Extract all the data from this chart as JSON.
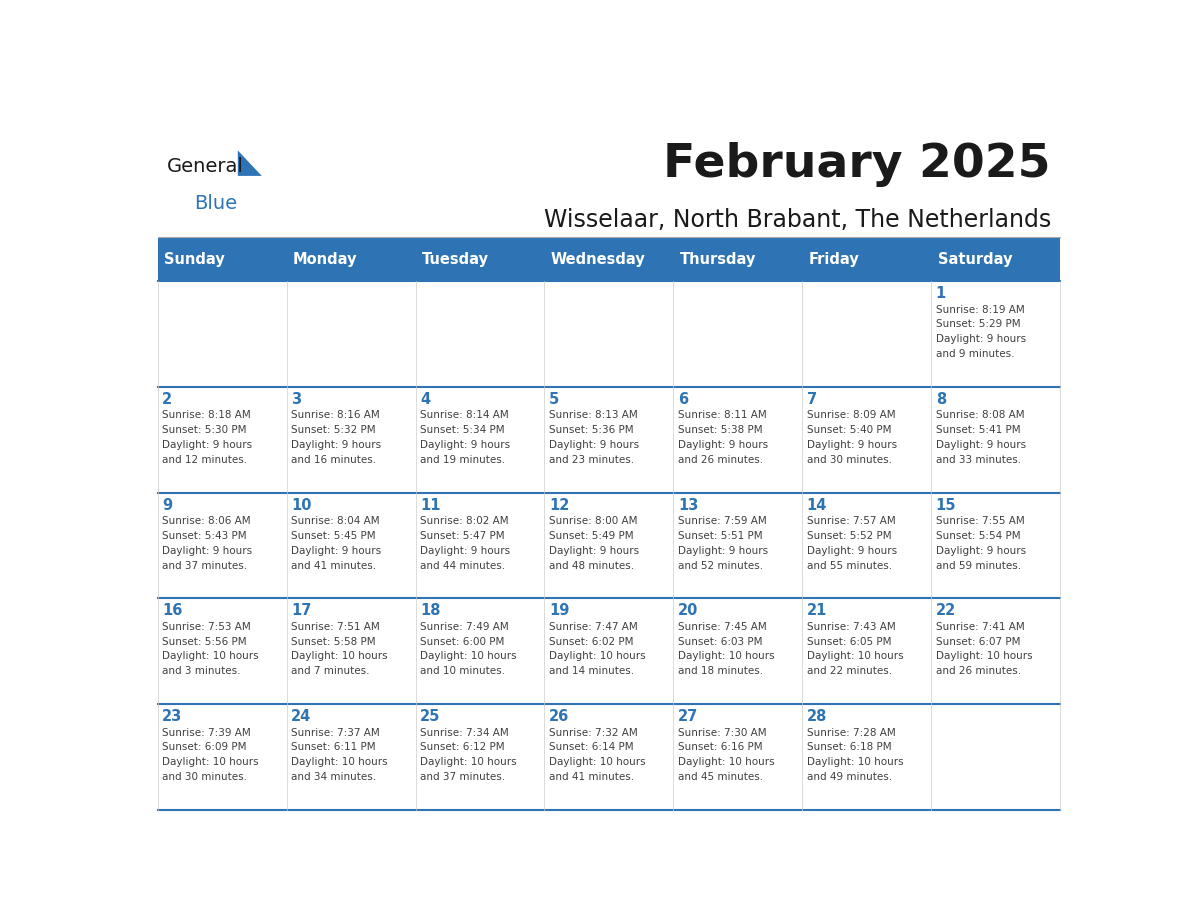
{
  "title": "February 2025",
  "subtitle": "Wisselaar, North Brabant, The Netherlands",
  "header_bg": "#2e74b5",
  "header_text_color": "#ffffff",
  "cell_border_color": "#2e74b5",
  "day_number_color": "#2e74b5",
  "info_text_color": "#404040",
  "days_of_week": [
    "Sunday",
    "Monday",
    "Tuesday",
    "Wednesday",
    "Thursday",
    "Friday",
    "Saturday"
  ],
  "logo_general_color": "#1a1a1a",
  "logo_blue_color": "#2e74b5",
  "calendar_data": [
    [
      null,
      null,
      null,
      null,
      null,
      null,
      {
        "day": 1,
        "sunrise": "8:19 AM",
        "sunset": "5:29 PM",
        "daylight": "9 hours and 9 minutes."
      }
    ],
    [
      {
        "day": 2,
        "sunrise": "8:18 AM",
        "sunset": "5:30 PM",
        "daylight": "9 hours and 12 minutes."
      },
      {
        "day": 3,
        "sunrise": "8:16 AM",
        "sunset": "5:32 PM",
        "daylight": "9 hours and 16 minutes."
      },
      {
        "day": 4,
        "sunrise": "8:14 AM",
        "sunset": "5:34 PM",
        "daylight": "9 hours and 19 minutes."
      },
      {
        "day": 5,
        "sunrise": "8:13 AM",
        "sunset": "5:36 PM",
        "daylight": "9 hours and 23 minutes."
      },
      {
        "day": 6,
        "sunrise": "8:11 AM",
        "sunset": "5:38 PM",
        "daylight": "9 hours and 26 minutes."
      },
      {
        "day": 7,
        "sunrise": "8:09 AM",
        "sunset": "5:40 PM",
        "daylight": "9 hours and 30 minutes."
      },
      {
        "day": 8,
        "sunrise": "8:08 AM",
        "sunset": "5:41 PM",
        "daylight": "9 hours and 33 minutes."
      }
    ],
    [
      {
        "day": 9,
        "sunrise": "8:06 AM",
        "sunset": "5:43 PM",
        "daylight": "9 hours and 37 minutes."
      },
      {
        "day": 10,
        "sunrise": "8:04 AM",
        "sunset": "5:45 PM",
        "daylight": "9 hours and 41 minutes."
      },
      {
        "day": 11,
        "sunrise": "8:02 AM",
        "sunset": "5:47 PM",
        "daylight": "9 hours and 44 minutes."
      },
      {
        "day": 12,
        "sunrise": "8:00 AM",
        "sunset": "5:49 PM",
        "daylight": "9 hours and 48 minutes."
      },
      {
        "day": 13,
        "sunrise": "7:59 AM",
        "sunset": "5:51 PM",
        "daylight": "9 hours and 52 minutes."
      },
      {
        "day": 14,
        "sunrise": "7:57 AM",
        "sunset": "5:52 PM",
        "daylight": "9 hours and 55 minutes."
      },
      {
        "day": 15,
        "sunrise": "7:55 AM",
        "sunset": "5:54 PM",
        "daylight": "9 hours and 59 minutes."
      }
    ],
    [
      {
        "day": 16,
        "sunrise": "7:53 AM",
        "sunset": "5:56 PM",
        "daylight": "10 hours and 3 minutes."
      },
      {
        "day": 17,
        "sunrise": "7:51 AM",
        "sunset": "5:58 PM",
        "daylight": "10 hours and 7 minutes."
      },
      {
        "day": 18,
        "sunrise": "7:49 AM",
        "sunset": "6:00 PM",
        "daylight": "10 hours and 10 minutes."
      },
      {
        "day": 19,
        "sunrise": "7:47 AM",
        "sunset": "6:02 PM",
        "daylight": "10 hours and 14 minutes."
      },
      {
        "day": 20,
        "sunrise": "7:45 AM",
        "sunset": "6:03 PM",
        "daylight": "10 hours and 18 minutes."
      },
      {
        "day": 21,
        "sunrise": "7:43 AM",
        "sunset": "6:05 PM",
        "daylight": "10 hours and 22 minutes."
      },
      {
        "day": 22,
        "sunrise": "7:41 AM",
        "sunset": "6:07 PM",
        "daylight": "10 hours and 26 minutes."
      }
    ],
    [
      {
        "day": 23,
        "sunrise": "7:39 AM",
        "sunset": "6:09 PM",
        "daylight": "10 hours and 30 minutes."
      },
      {
        "day": 24,
        "sunrise": "7:37 AM",
        "sunset": "6:11 PM",
        "daylight": "10 hours and 34 minutes."
      },
      {
        "day": 25,
        "sunrise": "7:34 AM",
        "sunset": "6:12 PM",
        "daylight": "10 hours and 37 minutes."
      },
      {
        "day": 26,
        "sunrise": "7:32 AM",
        "sunset": "6:14 PM",
        "daylight": "10 hours and 41 minutes."
      },
      {
        "day": 27,
        "sunrise": "7:30 AM",
        "sunset": "6:16 PM",
        "daylight": "10 hours and 45 minutes."
      },
      {
        "day": 28,
        "sunrise": "7:28 AM",
        "sunset": "6:18 PM",
        "daylight": "10 hours and 49 minutes."
      },
      null
    ]
  ]
}
